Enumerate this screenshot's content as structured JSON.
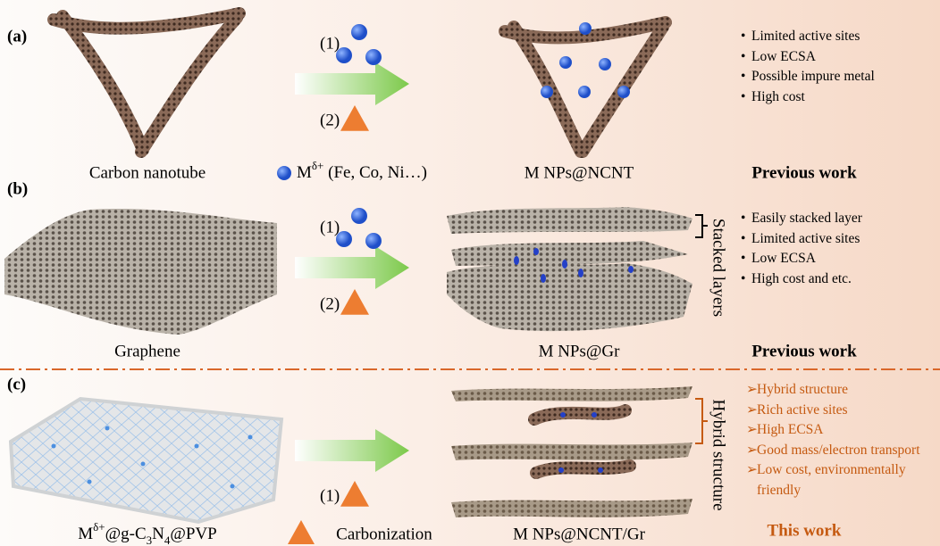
{
  "panels": [
    {
      "label": "(a)",
      "start": "Carbon nanotube",
      "product": "M NPs@NCNT",
      "steps": [
        "(1)",
        "(2)"
      ],
      "marker": "•",
      "color": "#000000",
      "bullets": [
        "Limited active sites",
        "Low ECSA",
        "Possible impure metal",
        "High cost"
      ],
      "tag": "Previous work"
    },
    {
      "label": "(b)",
      "start": "Graphene",
      "product": "M NPs@Gr",
      "side_label": "Stacked layers",
      "steps": [
        "(1)",
        "(2)"
      ],
      "marker": "•",
      "color": "#000000",
      "bullets": [
        "Easily stacked layer",
        "Limited active sites",
        "Low ECSA",
        "High cost and etc."
      ],
      "tag": "Previous work"
    },
    {
      "label": "(c)",
      "start": [
        {
          "text": "M"
        },
        {
          "text": "δ+",
          "script": "super"
        },
        {
          "text": "@g-C"
        },
        {
          "text": "3",
          "script": "sub"
        },
        {
          "text": "N"
        },
        {
          "text": "4",
          "script": "sub"
        },
        {
          "text": "@PVP"
        }
      ],
      "product": "M NPs@NCNT/Gr",
      "side_label": "Hybrid structure",
      "steps": [
        "(1)"
      ],
      "marker": "➢",
      "color": "#c55a11",
      "bullets": [
        "Hybrid structure",
        "Rich active sites",
        "High ECSA",
        "Good mass/electron transport",
        "Low cost, environmentally friendly"
      ],
      "tag": "This work"
    }
  ],
  "legend": {
    "metal": [
      {
        "text": "M"
      },
      {
        "text": "δ+",
        "script": "super"
      },
      {
        "text": " (Fe, Co, Ni…)"
      }
    ],
    "carbonization": "Carbonization"
  }
}
